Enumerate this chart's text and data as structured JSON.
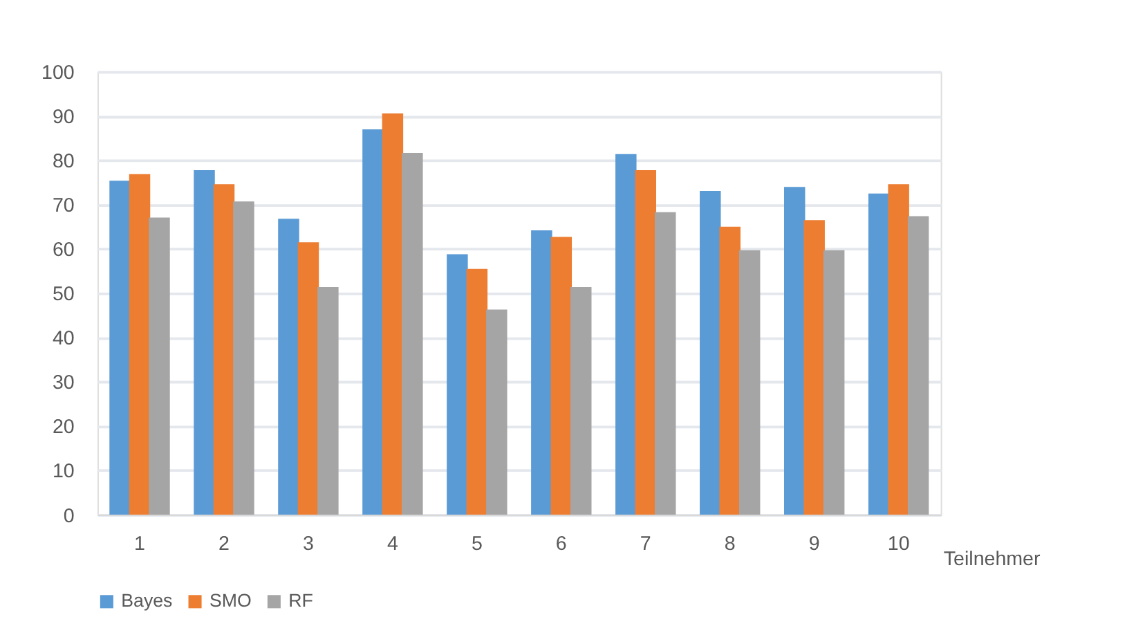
{
  "chart_data": {
    "type": "bar",
    "xlabel": "Teilnehmer",
    "categories": [
      "1",
      "2",
      "3",
      "4",
      "5",
      "6",
      "7",
      "8",
      "9",
      "10"
    ],
    "series": [
      {
        "name": "Bayes",
        "color": "#5b9bd5",
        "values": [
          75.4,
          77.8,
          66.8,
          87.0,
          58.8,
          64.2,
          81.4,
          73.1,
          74.0,
          72.5
        ]
      },
      {
        "name": "SMO",
        "color": "#ed7d31",
        "values": [
          76.9,
          74.6,
          61.5,
          90.6,
          55.5,
          62.7,
          77.8,
          65.0,
          66.5,
          74.6
        ]
      },
      {
        "name": "RF",
        "color": "#a5a5a5",
        "values": [
          67.1,
          70.7,
          51.4,
          81.7,
          46.3,
          51.4,
          68.3,
          59.7,
          59.7,
          67.4
        ]
      }
    ],
    "ylim": [
      0,
      100
    ],
    "yticks": [
      0,
      10,
      20,
      30,
      40,
      50,
      60,
      70,
      80,
      90,
      100
    ],
    "grid": "y",
    "legend": "bottom"
  }
}
